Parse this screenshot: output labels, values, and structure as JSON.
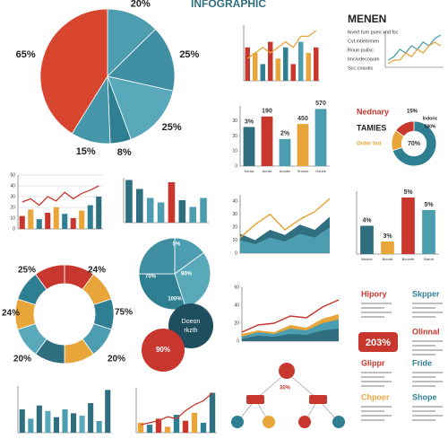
{
  "title": "INFOGRAPHIC",
  "chart_data": [
    {
      "type": "pie",
      "values": [
        20,
        25,
        25,
        8,
        15,
        65
      ],
      "value_labels": [
        "20%",
        "25%",
        "25%",
        "8%",
        "15%",
        "65%"
      ],
      "colors": [
        "#4d9db0",
        "#3f8ea2",
        "#5aa9ba",
        "#2f7f93",
        "#4597a9",
        "#d9462f"
      ]
    },
    {
      "type": "bar",
      "values": [
        6,
        5,
        3,
        7,
        4,
        6,
        3,
        7,
        5,
        6
      ],
      "colors": [
        "#c8372d",
        "#e8a53a",
        "#2f7f93",
        "#c8372d",
        "#e8a53a",
        "#2f7f93",
        "#c8372d",
        "#4d9db0",
        "#e8a53a",
        "#c8372d"
      ],
      "line": [
        4,
        5,
        6,
        5,
        6,
        7,
        6,
        8,
        8,
        9
      ],
      "line_color": "#e8a53a",
      "ylim": [
        0,
        10
      ]
    },
    {
      "type": "line",
      "title": "MENEN",
      "texts": [
        "Ikvert fum pseo xnd fsc",
        "Cvl.mtietnmen",
        "Roun puilxc",
        "Imcivdecoaum",
        "Scc.cnauks"
      ],
      "series": [
        {
          "color": "#4d9db0",
          "values": [
            2,
            3,
            5,
            4,
            6,
            5,
            7,
            6,
            8,
            9
          ]
        },
        {
          "color": "#e8a53a",
          "values": [
            1,
            2,
            2,
            4,
            3,
            5,
            4,
            6,
            7,
            6
          ]
        }
      ],
      "ylim": [
        0,
        10
      ]
    },
    {
      "type": "bar",
      "values": [
        26,
        33,
        18,
        28,
        38
      ],
      "colors": [
        "#2f6f80",
        "#c8372d",
        "#4d9db0",
        "#e8a53a",
        "#4d9db0"
      ],
      "annotations": [
        "3%",
        "190",
        "2%",
        "450",
        "570"
      ],
      "categories": [
        "Sunsk",
        "Aunsk",
        "Auodin",
        "Srouhk",
        "Osunk"
      ],
      "ylim": [
        0,
        40
      ],
      "yticks": [
        0,
        10,
        20,
        30
      ]
    },
    {
      "type": "donut",
      "values": [
        70,
        15,
        15
      ],
      "colors": [
        "#2f7f93",
        "#e8a53a",
        "#c8372d"
      ],
      "hole": 0.55,
      "center_label": "70%",
      "texts": [
        "Nednary",
        "TAMIES",
        "Order but",
        "15%",
        "Indoric",
        "580%"
      ]
    },
    {
      "type": "bar",
      "values": [
        12,
        18,
        9,
        15,
        20,
        14,
        10,
        17,
        22,
        30
      ],
      "colors": [
        "#c8372d",
        "#e8a53a",
        "#2f7f93",
        "#c8372d",
        "#e8a53a",
        "#2f7f93",
        "#c8372d",
        "#e8a53a",
        "#2f7f93",
        "#2f6f80"
      ],
      "line": [
        25,
        28,
        22,
        30,
        26,
        34,
        28,
        33,
        36,
        40
      ],
      "line_color": "#c8372d",
      "ylim": [
        0,
        50
      ],
      "yticks": [
        0,
        10,
        20,
        30,
        40,
        50
      ],
      "grid": true
    },
    {
      "type": "bar",
      "values": [
        38,
        30,
        22,
        18,
        36,
        20,
        14,
        22
      ],
      "colors": [
        "#2f6f80",
        "#2f6f80",
        "#4d9db0",
        "#4d9db0",
        "#c8372d",
        "#2f6f80",
        "#4d9db0",
        "#4d9db0"
      ],
      "ylim": [
        0,
        40
      ]
    },
    {
      "type": "area",
      "series": [
        {
          "color": "#2f6f80",
          "values": [
            15,
            10,
            18,
            14,
            22,
            18,
            28
          ]
        },
        {
          "color": "#4d9db0",
          "values": [
            10,
            7,
            12,
            9,
            15,
            12,
            20
          ]
        }
      ],
      "line": [
        12,
        22,
        30,
        18,
        26,
        32,
        42
      ],
      "line_color": "#e8a53a",
      "ylim": [
        0,
        45
      ],
      "yticks": [
        0,
        10,
        20,
        30,
        40
      ]
    },
    {
      "type": "bar",
      "values": [
        18,
        8,
        36,
        28
      ],
      "colors": [
        "#2f6f80",
        "#e8a53a",
        "#c8372d",
        "#4d9db0"
      ],
      "annotations": [
        "4%",
        "3%",
        "5%",
        "5%"
      ],
      "categories": [
        "Bosiott",
        "Borodt",
        "Bcomth",
        "Barott"
      ],
      "ylim": [
        0,
        40
      ]
    },
    {
      "type": "donut",
      "values": [
        10,
        10,
        10,
        10,
        10,
        10,
        10,
        10,
        10,
        10
      ],
      "colors": [
        "#c8372d",
        "#e8a53a",
        "#2f7f93",
        "#4d9db0",
        "#e8a53a",
        "#2f6f80",
        "#5aa9ba",
        "#e8a53a",
        "#2f7f93",
        "#c8372d"
      ],
      "hole": 0.62,
      "annotations": [
        "24%",
        "75%",
        "20%",
        "20%",
        "24%",
        "25%"
      ]
    },
    {
      "type": "pie",
      "values": [
        15,
        30,
        30,
        25
      ],
      "colors": [
        "#4d9db0",
        "#5aa9ba",
        "#2f7f93",
        "#3f8ea2"
      ],
      "annotations": [
        "5%",
        "90%",
        "100%",
        "70%"
      ],
      "circle_text": [
        "Doeon",
        "rkzth"
      ],
      "circle_label": "90%"
    },
    {
      "type": "area",
      "series": [
        {
          "color": "#e8a53a",
          "values": [
            8,
            12,
            10,
            18,
            15,
            25,
            30
          ]
        },
        {
          "color": "#4d9db0",
          "values": [
            5,
            10,
            8,
            14,
            12,
            20,
            24
          ]
        },
        {
          "color": "#2f6f80",
          "values": [
            3,
            6,
            5,
            8,
            7,
            12,
            14
          ]
        }
      ],
      "line": [
        10,
        18,
        20,
        28,
        26,
        38,
        46
      ],
      "line_color": "#c8372d",
      "ylim": [
        0,
        60
      ],
      "yticks": [
        0,
        20,
        40,
        60
      ]
    },
    {
      "type": "bar",
      "values": [
        30,
        18,
        35,
        28,
        20,
        30,
        25,
        22,
        38,
        15,
        55
      ],
      "colors": [
        "#2f6f80",
        "#4d9db0",
        "#2f6f80",
        "#5aa9ba",
        "#2f6f80",
        "#4d9db0",
        "#2f6f80",
        "#5aa9ba",
        "#2f6f80",
        "#4d9db0",
        "#2f6f80"
      ],
      "ylim": [
        0,
        60
      ]
    },
    {
      "type": "bar",
      "values": [
        10,
        8,
        14,
        6,
        18,
        12,
        20,
        10,
        40
      ],
      "colors": [
        "#e8a53a",
        "#2f7f93",
        "#c8372d",
        "#e8a53a",
        "#2f7f93",
        "#c8372d",
        "#e8a53a",
        "#2f7f93",
        "#2f6f80"
      ],
      "line": [
        8,
        10,
        12,
        16,
        14,
        22,
        28,
        32,
        40
      ],
      "line_color": "#c8372d",
      "ylim": [
        0,
        45
      ]
    }
  ],
  "panels": {
    "items": [
      {
        "title": "Hipory",
        "color": "#c8372d"
      },
      {
        "title": "Skpper",
        "color": "#2f7f93"
      },
      {
        "title": "Olinnal",
        "color": "#c8372d"
      },
      {
        "title": "Glippr",
        "color": "#c8372d"
      },
      {
        "title": "Fride",
        "color": "#2f7f93"
      },
      {
        "title": "Chpoer",
        "color": "#e8a53a"
      },
      {
        "title": "Shope",
        "color": "#2f7f93"
      }
    ],
    "badge": "203%"
  },
  "tree": {
    "label": "30%"
  }
}
